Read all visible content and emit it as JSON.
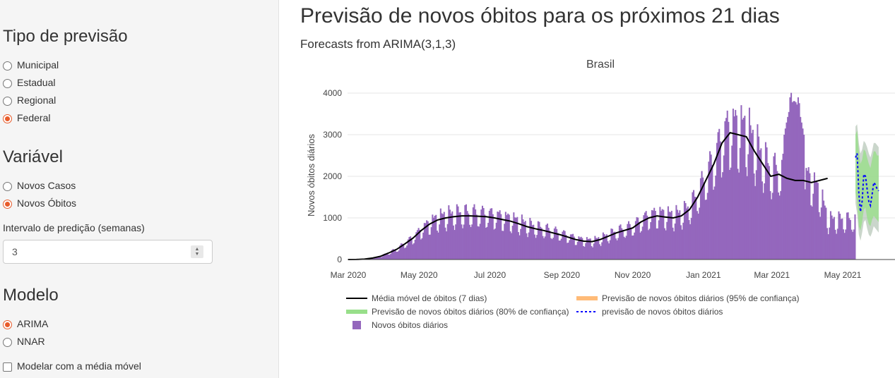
{
  "sidebar": {
    "tipo": {
      "title": "Tipo de previsão",
      "options": [
        {
          "label": "Municipal",
          "checked": false
        },
        {
          "label": "Estadual",
          "checked": false
        },
        {
          "label": "Regional",
          "checked": false
        },
        {
          "label": "Federal",
          "checked": true
        }
      ]
    },
    "variavel": {
      "title": "Variável",
      "options": [
        {
          "label": "Novos Casos",
          "checked": false
        },
        {
          "label": "Novos Óbitos",
          "checked": true
        }
      ]
    },
    "intervalo": {
      "label": "Intervalo de predição (semanas)",
      "value": "3"
    },
    "modelo": {
      "title": "Modelo",
      "options": [
        {
          "label": "ARIMA",
          "checked": true
        },
        {
          "label": "NNAR",
          "checked": false
        }
      ],
      "checkbox": {
        "label": "Modelar com a média móvel",
        "checked": false
      }
    }
  },
  "main": {
    "title": "Previsão de novos óbitos para os próximos 21 dias",
    "subtitle": "Forecasts from ARIMA(3,1,3)"
  },
  "colors": {
    "accent": "#e85b2a",
    "bars": "#9467bd",
    "moving_avg": "#000000",
    "ci95": "#ffbb78",
    "ci80": "#98df8a",
    "forecast": "#0000ff"
  },
  "chart_data": {
    "type": "bar",
    "title": "Brasil",
    "ylabel": "Novos óbitos diários",
    "xlabel": "",
    "ylim": [
      0,
      4200
    ],
    "y_ticks": [
      0,
      1000,
      2000,
      3000,
      4000
    ],
    "x_ticks": [
      "Mar 2020",
      "May 2020",
      "Jul 2020",
      "Sep 2020",
      "Nov 2020",
      "Jan 2021",
      "Mar 2021",
      "May 2021"
    ],
    "grid": true,
    "legend_position": "bottom",
    "legend": [
      "Média móvel de óbitos (7 dias)",
      "Previsão de novos óbitos diários (95% de confiança)",
      "Previsão de novos óbitos diários (80% de confiança)",
      "previsão de novos óbitos diários",
      "Novos óbitos diários"
    ],
    "series": [
      {
        "name": "Novos óbitos diários",
        "type": "bar",
        "x_start": "2020-03-01",
        "x_end": "2021-05-11",
        "weekly_avg_values": [
          0,
          2,
          10,
          35,
          80,
          160,
          250,
          380,
          520,
          700,
          850,
          950,
          1000,
          1030,
          1050,
          1050,
          1040,
          1030,
          1000,
          960,
          920,
          860,
          790,
          740,
          700,
          650,
          600,
          540,
          480,
          440,
          430,
          480,
          560,
          640,
          700,
          760,
          900,
          1000,
          1050,
          1020,
          1000,
          1050,
          1200,
          1500,
          1900,
          2300,
          2800,
          3050,
          3000,
          2950,
          2600,
          2300,
          2000,
          2050,
          1950,
          1900,
          1900,
          1800,
          1500,
          900
        ],
        "peak": 4150
      },
      {
        "name": "Média móvel de óbitos (7 dias)",
        "type": "line",
        "x_start": "2020-03-01",
        "x_end": "2021-05-11",
        "weekly_values": [
          0,
          2,
          10,
          35,
          80,
          160,
          250,
          380,
          520,
          700,
          850,
          950,
          1000,
          1030,
          1050,
          1050,
          1040,
          1030,
          1000,
          960,
          920,
          860,
          790,
          740,
          700,
          650,
          600,
          540,
          480,
          440,
          430,
          480,
          560,
          640,
          700,
          760,
          900,
          1000,
          1050,
          1020,
          1000,
          1050,
          1200,
          1500,
          1900,
          2300,
          2800,
          3050,
          3000,
          2950,
          2600,
          2300,
          2000,
          2050,
          1950,
          1900,
          1900,
          1850,
          1900,
          1950
        ]
      },
      {
        "name": "previsão de novos óbitos diários",
        "type": "forecast",
        "x_start": "2021-05-12",
        "x_end": "2021-06-01",
        "values": [
          2450,
          2550,
          1600,
          1150,
          1400,
          2050,
          2000,
          1700,
          1400,
          1300,
          1550,
          1850,
          1800,
          1700,
          1650
        ],
        "ci80_low": [
          1600,
          1400,
          800,
          700,
          900,
          1200,
          1250,
          1000,
          850,
          800,
          950,
          1050,
          1000,
          950,
          900
        ],
        "ci80_high": [
          3000,
          3100,
          2600,
          2300,
          2400,
          2650,
          2600,
          2450,
          2300,
          2200,
          2400,
          2600,
          2600,
          2500,
          2500
        ],
        "ci95_low": [
          1350,
          1100,
          600,
          450,
          650,
          900,
          950,
          750,
          600,
          550,
          650,
          800,
          750,
          700,
          650
        ],
        "ci95_high": [
          3200,
          3250,
          2800,
          2550,
          2650,
          2850,
          2800,
          2700,
          2550,
          2450,
          2600,
          2800,
          2800,
          2750,
          2700
        ]
      }
    ]
  }
}
